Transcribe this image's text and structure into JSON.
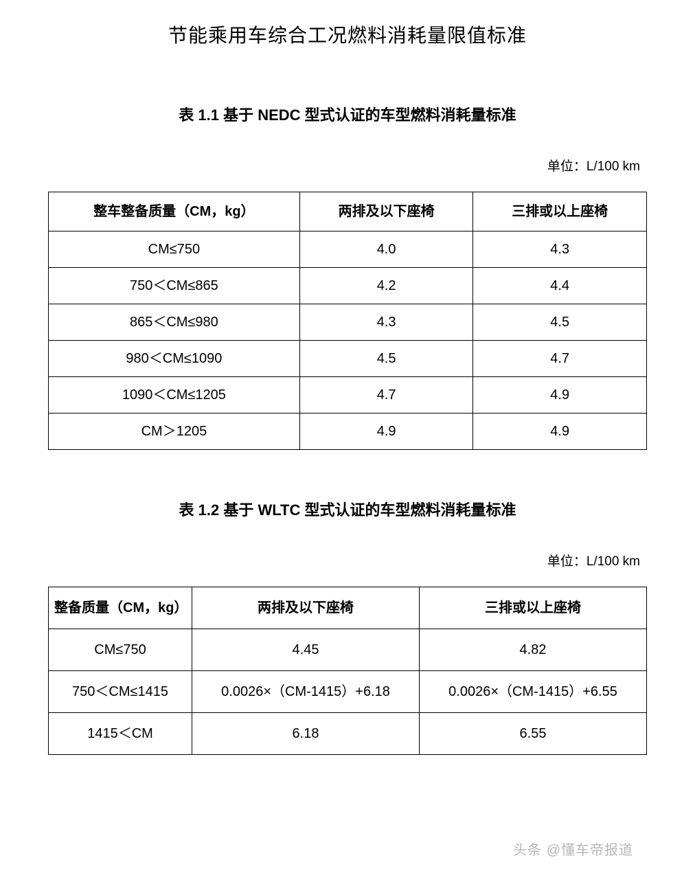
{
  "main_title": "节能乘用车综合工况燃料消耗量限值标准",
  "table1": {
    "title": "表 1.1  基于 NEDC 型式认证的车型燃料消耗量标准",
    "unit": "单位：L/100 km",
    "columns": [
      "整车整备质量（CM，kg）",
      "两排及以下座椅",
      "三排或以上座椅"
    ],
    "rows": [
      [
        "CM≤750",
        "4.0",
        "4.3"
      ],
      [
        "750＜CM≤865",
        "4.2",
        "4.4"
      ],
      [
        "865＜CM≤980",
        "4.3",
        "4.5"
      ],
      [
        "980＜CM≤1090",
        "4.5",
        "4.7"
      ],
      [
        "1090＜CM≤1205",
        "4.7",
        "4.9"
      ],
      [
        "CM＞1205",
        "4.9",
        "4.9"
      ]
    ]
  },
  "table2": {
    "title": "表 1.2  基于 WLTC 型式认证的车型燃料消耗量标准",
    "unit": "单位：L/100 km",
    "columns": [
      "整备质量（CM，kg）",
      "两排及以下座椅",
      "三排或以上座椅"
    ],
    "rows": [
      [
        "CM≤750",
        "4.45",
        "4.82"
      ],
      [
        "750＜CM≤1415",
        "0.0026×（CM-1415）+6.18",
        "0.0026×（CM-1415）+6.55"
      ],
      [
        "1415＜CM",
        "6.18",
        "6.55"
      ]
    ]
  },
  "watermark": "头条 @懂车帝报道",
  "colors": {
    "text": "#000000",
    "border": "#000000",
    "background": "#ffffff",
    "watermark": "#999999"
  },
  "fonts": {
    "main_title_size": 28,
    "table_title_size": 22,
    "unit_size": 19,
    "cell_size": 20,
    "watermark_size": 20
  }
}
